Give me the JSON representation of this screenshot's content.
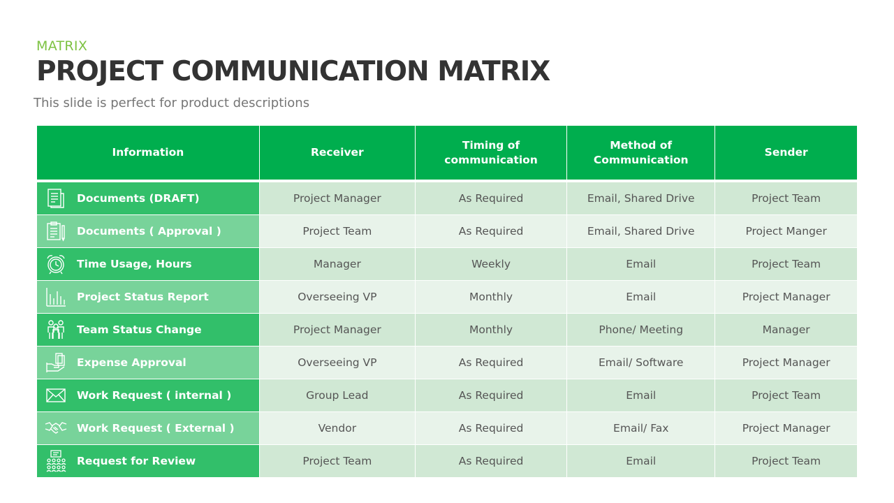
{
  "slide": {
    "eyebrow": "MATRIX",
    "title": "PROJECT COMMUNICATION MATRIX",
    "subtitle": "This slide is perfect for product descriptions"
  },
  "colors": {
    "accent_green": "#00ae4e",
    "eyebrow_green": "#7dc242",
    "title_text": "#333333"
  },
  "table": {
    "headers": [
      "Information",
      "Receiver",
      "Timing of communication",
      "Method of Communication",
      "Sender"
    ],
    "rows": [
      {
        "icon": "document-icon",
        "information": "Documents (DRAFT)",
        "receiver": "Project Manager",
        "timing": "As Required",
        "method": "Email, Shared Drive",
        "sender": "Project Team"
      },
      {
        "icon": "clipboard-icon",
        "information": "Documents ( Approval )",
        "receiver": "Project Team",
        "timing": "As Required",
        "method": "Email, Shared Drive",
        "sender": "Project Manger"
      },
      {
        "icon": "alarm-clock-icon",
        "information": "Time Usage, Hours",
        "receiver": "Manager",
        "timing": "Weekly",
        "method": "Email",
        "sender": "Project Team"
      },
      {
        "icon": "bar-chart-icon",
        "information": "Project Status Report",
        "receiver": "Overseeing VP",
        "timing": "Monthly",
        "method": "Email",
        "sender": "Project Manager"
      },
      {
        "icon": "team-icon",
        "information": "Team Status Change",
        "receiver": "Project Manager",
        "timing": "Monthly",
        "method": "Phone/ Meeting",
        "sender": "Manager"
      },
      {
        "icon": "money-hand-icon",
        "information": "Expense Approval",
        "receiver": "Overseeing VP",
        "timing": "As Required",
        "method": "Email/ Software",
        "sender": "Project Manager"
      },
      {
        "icon": "envelope-icon",
        "information": "Work Request ( internal )",
        "receiver": "Group Lead",
        "timing": "As Required",
        "method": "Email",
        "sender": "Project Team"
      },
      {
        "icon": "handshake-icon",
        "information": "Work Request ( External )",
        "receiver": "Vendor",
        "timing": "As Required",
        "method": "Email/ Fax",
        "sender": "Project Manager"
      },
      {
        "icon": "audience-icon",
        "information": "Request for Review",
        "receiver": "Project Team",
        "timing": "As Required",
        "method": "Email",
        "sender": "Project Team"
      }
    ]
  }
}
